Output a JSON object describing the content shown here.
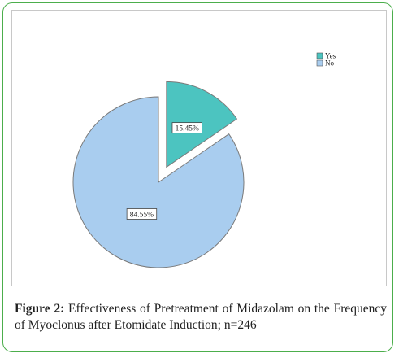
{
  "chart_data": {
    "type": "pie",
    "categories": [
      "Yes",
      "No"
    ],
    "values": [
      15.45,
      84.55
    ],
    "labels": [
      "15.45%",
      "84.55%"
    ],
    "exploded": [
      "Yes"
    ],
    "colors": {
      "Yes": "#4cc4c0",
      "No": "#a9cdef"
    },
    "legend": {
      "entries": [
        "Yes",
        "No"
      ],
      "placement": "top-right"
    },
    "title": ""
  },
  "figure": {
    "label": "Figure 2:",
    "caption": " Effectiveness of Pretreatment of Midazolam on the Frequency of Myoclonus after Etomidate Induction; n=246"
  }
}
